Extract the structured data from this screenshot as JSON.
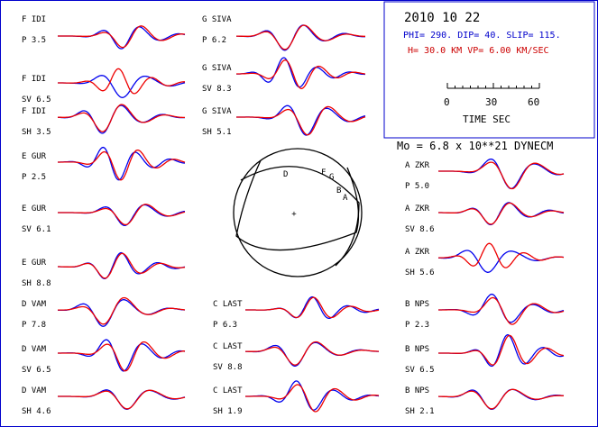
{
  "event": {
    "date": "2010 10 22",
    "mechanism": "PHI= 290. DIP= 40. SLIP= 115.",
    "depth_velocity": "H= 30.0 KM  VP= 6.00 KM/SEC",
    "moment": "Mo =  6.8 x 10**21 DYNECM"
  },
  "time_scale": {
    "tick_labels": [
      "0",
      "30",
      "60"
    ],
    "label": "TIME  SEC"
  },
  "colors": {
    "observed": "#0000ee",
    "synthetic": "#ee0000",
    "frame": "#0000cc",
    "ink": "#000000"
  },
  "stations": [
    {
      "code": "F IDI",
      "phase": "P",
      "value": "3.5"
    },
    {
      "code": "F IDI",
      "phase": "SV",
      "value": "6.5"
    },
    {
      "code": "F IDI",
      "phase": "SH",
      "value": "3.5"
    },
    {
      "code": "E GUR",
      "phase": "P",
      "value": "2.5"
    },
    {
      "code": "E GUR",
      "phase": "SV",
      "value": "6.1"
    },
    {
      "code": "E GUR",
      "phase": "SH",
      "value": "8.8"
    },
    {
      "code": "D VAM",
      "phase": "P",
      "value": "7.8"
    },
    {
      "code": "D VAM",
      "phase": "SV",
      "value": "6.5"
    },
    {
      "code": "D VAM",
      "phase": "SH",
      "value": "4.6"
    },
    {
      "code": "G SIVA",
      "phase": "P",
      "value": "6.2"
    },
    {
      "code": "G SIVA",
      "phase": "SV",
      "value": "8.3"
    },
    {
      "code": "G SIVA",
      "phase": "SH",
      "value": "5.1"
    },
    {
      "code": "C LAST",
      "phase": "P",
      "value": "6.3"
    },
    {
      "code": "C LAST",
      "phase": "SV",
      "value": "8.8"
    },
    {
      "code": "C LAST",
      "phase": "SH",
      "value": "1.9"
    },
    {
      "code": "A ZKR",
      "phase": "P",
      "value": "5.0"
    },
    {
      "code": "A ZKR",
      "phase": "SV",
      "value": "8.6"
    },
    {
      "code": "A ZKR",
      "phase": "SH",
      "value": "5.6"
    },
    {
      "code": "B NPS",
      "phase": "P",
      "value": "2.3"
    },
    {
      "code": "B NPS",
      "phase": "SV",
      "value": "6.5"
    },
    {
      "code": "B NPS",
      "phase": "SH",
      "value": "2.1"
    }
  ],
  "sphere_labels": [
    {
      "text": "D",
      "style": "D"
    },
    {
      "text": "F",
      "style": "F"
    },
    {
      "text": "G",
      "style": "G"
    },
    {
      "text": "B",
      "style": "B"
    },
    {
      "text": "A",
      "style": "A"
    }
  ],
  "sphere_center_mark": "+"
}
